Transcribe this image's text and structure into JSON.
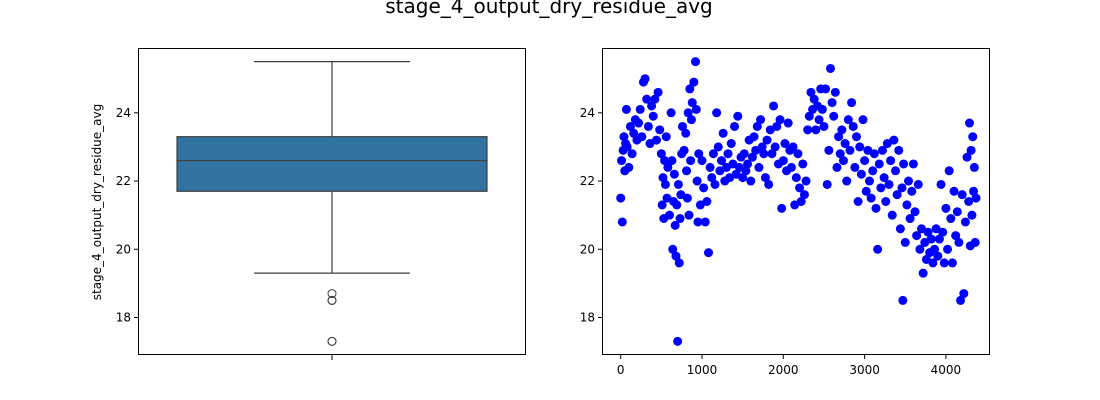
{
  "figure": {
    "title": "stage_4_output_dry_residue_avg"
  },
  "chart_data": [
    {
      "type": "box",
      "ylabel": "stage_4_output_dry_residue_avg",
      "xlabel": "",
      "ylim": [
        16.9,
        25.9
      ],
      "yticks": [
        18,
        20,
        22,
        24
      ],
      "box": {
        "whisker_low": 19.3,
        "q1": 21.7,
        "median": 22.6,
        "q3": 23.3,
        "whisker_high": 25.5
      },
      "outliers": [
        18.7,
        18.5,
        18.5,
        17.3,
        17.3
      ],
      "color": "#3274a1",
      "grid": false
    },
    {
      "type": "scatter",
      "xlabel": "",
      "ylabel": "",
      "xlim": [
        -230,
        4530
      ],
      "ylim": [
        16.9,
        25.9
      ],
      "xticks": [
        0,
        1000,
        2000,
        3000,
        4000
      ],
      "yticks": [
        18,
        20,
        22,
        24
      ],
      "color": "#0000ff",
      "grid": false,
      "points": [
        [
          0,
          21.5
        ],
        [
          10,
          22.6
        ],
        [
          20,
          20.8
        ],
        [
          30,
          22.9
        ],
        [
          40,
          23.3
        ],
        [
          50,
          22.3
        ],
        [
          60,
          23.1
        ],
        [
          70,
          24.1
        ],
        [
          80,
          23.0
        ],
        [
          100,
          22.4
        ],
        [
          120,
          23.6
        ],
        [
          140,
          22.8
        ],
        [
          160,
          23.4
        ],
        [
          180,
          23.8
        ],
        [
          200,
          23.2
        ],
        [
          220,
          23.7
        ],
        [
          240,
          24.1
        ],
        [
          260,
          23.3
        ],
        [
          280,
          24.9
        ],
        [
          300,
          25.0
        ],
        [
          320,
          24.4
        ],
        [
          340,
          23.6
        ],
        [
          360,
          23.1
        ],
        [
          380,
          24.2
        ],
        [
          400,
          23.9
        ],
        [
          420,
          24.4
        ],
        [
          440,
          23.2
        ],
        [
          460,
          24.6
        ],
        [
          480,
          23.5
        ],
        [
          500,
          22.8
        ],
        [
          510,
          21.3
        ],
        [
          520,
          22.1
        ],
        [
          530,
          20.9
        ],
        [
          540,
          22.6
        ],
        [
          550,
          21.9
        ],
        [
          560,
          23.3
        ],
        [
          570,
          21.5
        ],
        [
          580,
          22.4
        ],
        [
          600,
          21.0
        ],
        [
          620,
          24.0
        ],
        [
          630,
          22.6
        ],
        [
          640,
          20.0
        ],
        [
          650,
          21.4
        ],
        [
          660,
          22.2
        ],
        [
          670,
          20.7
        ],
        [
          680,
          19.8
        ],
        [
          690,
          21.3
        ],
        [
          700,
          17.3
        ],
        [
          710,
          21.9
        ],
        [
          720,
          19.6
        ],
        [
          730,
          20.9
        ],
        [
          740,
          21.6
        ],
        [
          750,
          22.8
        ],
        [
          760,
          23.6
        ],
        [
          780,
          22.9
        ],
        [
          800,
          23.4
        ],
        [
          810,
          22.3
        ],
        [
          820,
          21.5
        ],
        [
          830,
          24.0
        ],
        [
          840,
          21.0
        ],
        [
          850,
          24.7
        ],
        [
          860,
          22.6
        ],
        [
          870,
          23.8
        ],
        [
          880,
          24.3
        ],
        [
          900,
          24.9
        ],
        [
          920,
          25.5
        ],
        [
          930,
          24.1
        ],
        [
          940,
          22.0
        ],
        [
          950,
          20.8
        ],
        [
          960,
          22.8
        ],
        [
          980,
          21.3
        ],
        [
          1000,
          22.6
        ],
        [
          1020,
          21.8
        ],
        [
          1040,
          20.8
        ],
        [
          1060,
          21.4
        ],
        [
          1080,
          19.9
        ],
        [
          1100,
          22.4
        ],
        [
          1120,
          22.1
        ],
        [
          1140,
          22.8
        ],
        [
          1160,
          21.9
        ],
        [
          1180,
          24.0
        ],
        [
          1200,
          23.0
        ],
        [
          1220,
          22.3
        ],
        [
          1240,
          22.6
        ],
        [
          1260,
          23.4
        ],
        [
          1280,
          22.0
        ],
        [
          1300,
          22.4
        ],
        [
          1320,
          22.8
        ],
        [
          1340,
          22.1
        ],
        [
          1360,
          23.1
        ],
        [
          1380,
          22.5
        ],
        [
          1400,
          23.6
        ],
        [
          1420,
          22.2
        ],
        [
          1440,
          23.9
        ],
        [
          1460,
          22.4
        ],
        [
          1480,
          22.7
        ],
        [
          1500,
          22.1
        ],
        [
          1520,
          22.8
        ],
        [
          1540,
          22.3
        ],
        [
          1560,
          22.5
        ],
        [
          1580,
          23.2
        ],
        [
          1600,
          22.0
        ],
        [
          1620,
          22.7
        ],
        [
          1640,
          23.3
        ],
        [
          1660,
          22.9
        ],
        [
          1680,
          23.6
        ],
        [
          1700,
          22.4
        ],
        [
          1720,
          23.8
        ],
        [
          1740,
          23.0
        ],
        [
          1760,
          22.8
        ],
        [
          1780,
          22.1
        ],
        [
          1800,
          23.2
        ],
        [
          1820,
          21.9
        ],
        [
          1840,
          23.5
        ],
        [
          1860,
          22.8
        ],
        [
          1880,
          24.2
        ],
        [
          1900,
          23.0
        ],
        [
          1920,
          23.6
        ],
        [
          1940,
          22.5
        ],
        [
          1960,
          23.8
        ],
        [
          1980,
          21.2
        ],
        [
          2000,
          22.6
        ],
        [
          2020,
          23.1
        ],
        [
          2040,
          22.3
        ],
        [
          2060,
          23.7
        ],
        [
          2080,
          22.9
        ],
        [
          2100,
          22.4
        ],
        [
          2120,
          23.0
        ],
        [
          2140,
          21.3
        ],
        [
          2160,
          22.1
        ],
        [
          2180,
          22.8
        ],
        [
          2200,
          21.8
        ],
        [
          2220,
          21.4
        ],
        [
          2240,
          22.5
        ],
        [
          2260,
          21.6
        ],
        [
          2280,
          22.0
        ],
        [
          2300,
          23.5
        ],
        [
          2320,
          23.9
        ],
        [
          2340,
          24.6
        ],
        [
          2360,
          24.1
        ],
        [
          2380,
          24.4
        ],
        [
          2400,
          23.5
        ],
        [
          2420,
          24.2
        ],
        [
          2440,
          23.8
        ],
        [
          2460,
          24.7
        ],
        [
          2480,
          24.1
        ],
        [
          2500,
          23.6
        ],
        [
          2520,
          24.7
        ],
        [
          2540,
          21.9
        ],
        [
          2560,
          22.9
        ],
        [
          2580,
          25.3
        ],
        [
          2600,
          24.3
        ],
        [
          2620,
          23.9
        ],
        [
          2640,
          24.6
        ],
        [
          2660,
          22.4
        ],
        [
          2680,
          23.3
        ],
        [
          2700,
          22.8
        ],
        [
          2720,
          23.5
        ],
        [
          2740,
          22.6
        ],
        [
          2760,
          23.1
        ],
        [
          2780,
          22.0
        ],
        [
          2800,
          23.8
        ],
        [
          2820,
          22.9
        ],
        [
          2840,
          24.3
        ],
        [
          2860,
          23.6
        ],
        [
          2880,
          22.4
        ],
        [
          2900,
          23.3
        ],
        [
          2920,
          21.4
        ],
        [
          2940,
          23.0
        ],
        [
          2960,
          22.2
        ],
        [
          2980,
          23.8
        ],
        [
          3000,
          22.6
        ],
        [
          3020,
          21.7
        ],
        [
          3040,
          22.9
        ],
        [
          3060,
          22.0
        ],
        [
          3080,
          21.5
        ],
        [
          3100,
          22.3
        ],
        [
          3120,
          22.8
        ],
        [
          3140,
          21.2
        ],
        [
          3160,
          20.0
        ],
        [
          3180,
          22.5
        ],
        [
          3200,
          21.8
        ],
        [
          3220,
          22.9
        ],
        [
          3240,
          22.1
        ],
        [
          3260,
          21.4
        ],
        [
          3280,
          23.1
        ],
        [
          3300,
          21.9
        ],
        [
          3320,
          22.6
        ],
        [
          3340,
          21.0
        ],
        [
          3360,
          23.2
        ],
        [
          3380,
          22.3
        ],
        [
          3400,
          21.6
        ],
        [
          3420,
          22.9
        ],
        [
          3440,
          20.6
        ],
        [
          3460,
          21.8
        ],
        [
          3470,
          18.5
        ],
        [
          3480,
          22.5
        ],
        [
          3500,
          20.2
        ],
        [
          3520,
          21.3
        ],
        [
          3540,
          22.0
        ],
        [
          3560,
          20.9
        ],
        [
          3580,
          21.7
        ],
        [
          3600,
          22.5
        ],
        [
          3620,
          21.1
        ],
        [
          3640,
          20.4
        ],
        [
          3660,
          21.9
        ],
        [
          3680,
          20.0
        ],
        [
          3700,
          20.6
        ],
        [
          3720,
          19.3
        ],
        [
          3740,
          20.2
        ],
        [
          3760,
          19.7
        ],
        [
          3780,
          20.5
        ],
        [
          3800,
          19.9
        ],
        [
          3820,
          20.3
        ],
        [
          3840,
          19.6
        ],
        [
          3860,
          20.0
        ],
        [
          3880,
          20.6
        ],
        [
          3900,
          19.8
        ],
        [
          3920,
          20.3
        ],
        [
          3940,
          21.9
        ],
        [
          3960,
          20.5
        ],
        [
          3980,
          19.6
        ],
        [
          4000,
          21.2
        ],
        [
          4020,
          20.0
        ],
        [
          4040,
          22.3
        ],
        [
          4060,
          20.9
        ],
        [
          4080,
          19.6
        ],
        [
          4100,
          21.7
        ],
        [
          4120,
          20.4
        ],
        [
          4140,
          21.1
        ],
        [
          4160,
          20.2
        ],
        [
          4180,
          18.5
        ],
        [
          4200,
          21.6
        ],
        [
          4220,
          18.7
        ],
        [
          4240,
          20.8
        ],
        [
          4260,
          22.7
        ],
        [
          4280,
          21.4
        ],
        [
          4290,
          23.7
        ],
        [
          4300,
          20.1
        ],
        [
          4310,
          22.9
        ],
        [
          4320,
          21.0
        ],
        [
          4330,
          23.3
        ],
        [
          4340,
          21.7
        ],
        [
          4350,
          22.4
        ],
        [
          4360,
          20.2
        ],
        [
          4370,
          21.5
        ]
      ]
    }
  ]
}
